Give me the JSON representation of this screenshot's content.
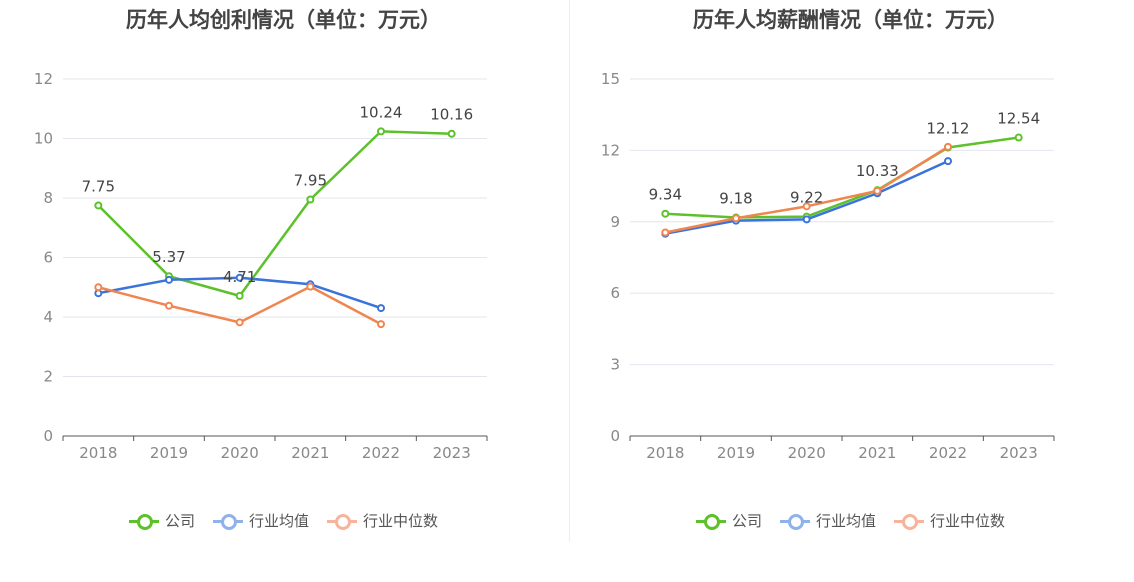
{
  "chart_data": [
    {
      "type": "line",
      "title": "历年人均创利情况（单位：万元）",
      "categories": [
        "2018",
        "2019",
        "2020",
        "2021",
        "2022",
        "2023"
      ],
      "ylim": [
        0,
        12
      ],
      "yticks": [
        0,
        2,
        4,
        6,
        8,
        10,
        12
      ],
      "grid": true,
      "legend_position": "bottom",
      "series": [
        {
          "name": "公司",
          "color": "#5cc12b",
          "values": [
            7.75,
            5.37,
            4.71,
            7.95,
            10.24,
            10.16
          ],
          "labels": [
            "7.75",
            "5.37",
            "4.71",
            "7.95",
            "10.24",
            "10.16"
          ]
        },
        {
          "name": "行业均值",
          "color": "#3a73d9",
          "values": [
            4.8,
            5.25,
            5.32,
            5.1,
            4.3,
            null
          ]
        },
        {
          "name": "行业中位数",
          "color": "#f0854f",
          "values": [
            5.0,
            4.38,
            3.82,
            5.02,
            3.76,
            null
          ]
        }
      ]
    },
    {
      "type": "line",
      "title": "历年人均薪酬情况（单位：万元）",
      "categories": [
        "2018",
        "2019",
        "2020",
        "2021",
        "2022",
        "2023"
      ],
      "ylim": [
        0,
        15
      ],
      "yticks": [
        0,
        3,
        6,
        9,
        12,
        15
      ],
      "grid": true,
      "legend_position": "bottom",
      "series": [
        {
          "name": "公司",
          "color": "#5cc12b",
          "values": [
            9.34,
            9.18,
            9.22,
            10.33,
            12.12,
            12.54
          ],
          "labels": [
            "9.34",
            "9.18",
            "9.22",
            "10.33",
            "12.12",
            "12.54"
          ]
        },
        {
          "name": "行业均值",
          "color": "#3a73d9",
          "values": [
            8.5,
            9.05,
            9.1,
            10.2,
            11.55,
            null
          ]
        },
        {
          "name": "行业中位数",
          "color": "#f0854f",
          "values": [
            8.55,
            9.15,
            9.65,
            10.3,
            12.15,
            null
          ]
        }
      ]
    }
  ],
  "legend": [
    {
      "name": "公司",
      "color": "#5cc12b"
    },
    {
      "name": "行业均值",
      "color": "#8fb1ec"
    },
    {
      "name": "行业中位数",
      "color": "#f7b49a"
    }
  ]
}
